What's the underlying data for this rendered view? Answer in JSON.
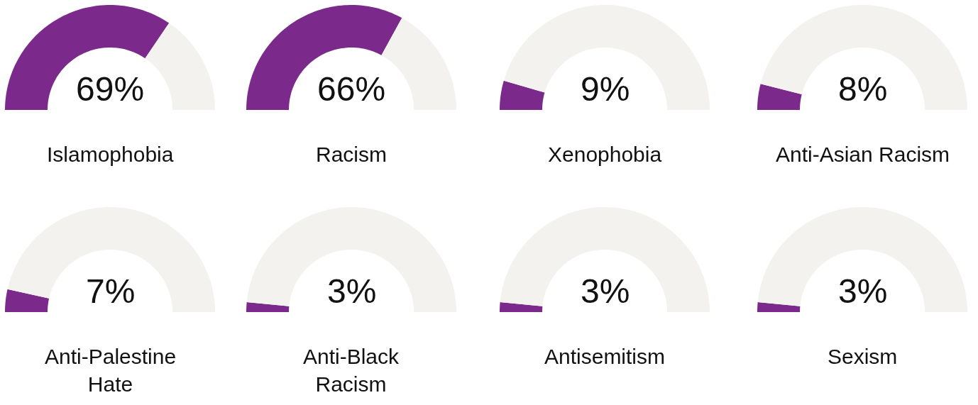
{
  "chart_data": [
    {
      "type": "donut",
      "title": "Islamophobia",
      "categories": [
        null,
        null
      ],
      "values": [
        69,
        31
      ],
      "colors": [
        "#7b2a8c",
        "#f4f2ef"
      ],
      "annotations": [
        "69%"
      ]
    },
    {
      "type": "donut",
      "title": "Racism",
      "categories": [
        null,
        null
      ],
      "values": [
        66,
        34
      ],
      "colors": [
        "#7b2a8c",
        "#f4f2ef"
      ],
      "annotations": [
        "66%"
      ]
    },
    {
      "type": "donut",
      "title": "Xenophobia",
      "categories": [
        null,
        null
      ],
      "values": [
        9,
        91
      ],
      "colors": [
        "#7b2a8c",
        "#f4f2ef"
      ],
      "annotations": [
        "9%"
      ]
    },
    {
      "type": "donut",
      "title": "Anti-Asian Racism",
      "categories": [
        null,
        null
      ],
      "values": [
        8,
        92
      ],
      "colors": [
        "#7b2a8c",
        "#f4f2ef"
      ],
      "annotations": [
        "8%"
      ]
    },
    {
      "type": "donut",
      "title": "Anti-Palestine\nHate",
      "categories": [
        null,
        null
      ],
      "values": [
        7,
        93
      ],
      "colors": [
        "#7b2a8c",
        "#f4f2ef"
      ],
      "annotations": [
        "7%"
      ]
    },
    {
      "type": "donut",
      "title": "Anti-Black\nRacism",
      "categories": [
        null,
        null
      ],
      "values": [
        3,
        97
      ],
      "colors": [
        "#7b2a8c",
        "#f4f2ef"
      ],
      "annotations": [
        "3%"
      ]
    },
    {
      "type": "donut",
      "title": "Antisemitism",
      "categories": [
        null,
        null
      ],
      "values": [
        3,
        97
      ],
      "colors": [
        "#7b2a8c",
        "#f4f2ef"
      ],
      "annotations": [
        "3%"
      ]
    },
    {
      "type": "donut",
      "title": "Sexism",
      "categories": [
        null,
        null
      ],
      "values": [
        3,
        97
      ],
      "colors": [
        "#7b2a8c",
        "#f4f2ef"
      ],
      "annotations": [
        "3%"
      ]
    }
  ]
}
